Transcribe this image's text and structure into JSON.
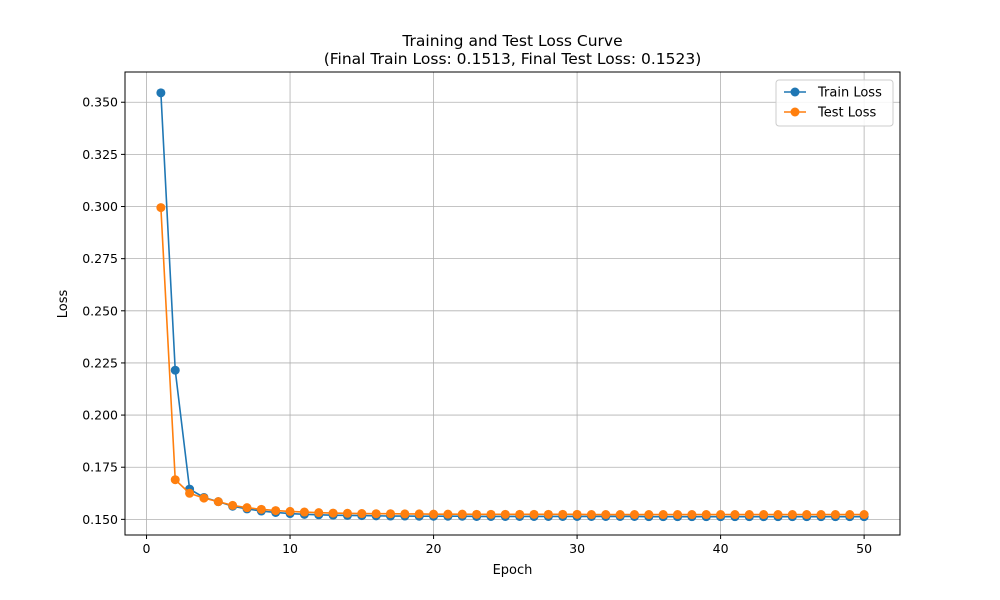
{
  "chart_data": {
    "type": "line",
    "title": "Training and Test Loss Curve",
    "subtitle": "(Final Train Loss: 0.1513, Final Test Loss: 0.1523)",
    "xlabel": "Epoch",
    "ylabel": "Loss",
    "xlim": [
      -1.5,
      52.5
    ],
    "ylim": [
      0.1425,
      0.3645
    ],
    "x_ticks": [
      0,
      10,
      20,
      30,
      40,
      50
    ],
    "y_ticks": [
      0.15,
      0.175,
      0.2,
      0.225,
      0.25,
      0.275,
      0.3,
      0.325,
      0.35
    ],
    "x_tick_labels": [
      "0",
      "10",
      "20",
      "30",
      "40",
      "50"
    ],
    "y_tick_labels": [
      "0.150",
      "0.175",
      "0.200",
      "0.225",
      "0.250",
      "0.275",
      "0.300",
      "0.325",
      "0.350"
    ],
    "grid": true,
    "legend_position": "top-right",
    "x": [
      1,
      2,
      3,
      4,
      5,
      6,
      7,
      8,
      9,
      10,
      11,
      12,
      13,
      14,
      15,
      16,
      17,
      18,
      19,
      20,
      21,
      22,
      23,
      24,
      25,
      26,
      27,
      28,
      29,
      30,
      31,
      32,
      33,
      34,
      35,
      36,
      37,
      38,
      39,
      40,
      41,
      42,
      43,
      44,
      45,
      46,
      47,
      48,
      49,
      50
    ],
    "series": [
      {
        "name": "Train Loss",
        "color": "#1f77b4",
        "values": [
          0.3545,
          0.2215,
          0.1645,
          0.1605,
          0.1585,
          0.1563,
          0.155,
          0.154,
          0.1533,
          0.1528,
          0.1524,
          0.1522,
          0.152,
          0.1519,
          0.1518,
          0.1517,
          0.1516,
          0.1516,
          0.1515,
          0.1515,
          0.1515,
          0.1515,
          0.1514,
          0.1514,
          0.1514,
          0.1514,
          0.1514,
          0.1514,
          0.1514,
          0.1514,
          0.1514,
          0.1514,
          0.1514,
          0.1514,
          0.1513,
          0.1513,
          0.1513,
          0.1513,
          0.1513,
          0.1513,
          0.1513,
          0.1513,
          0.1513,
          0.1513,
          0.1513,
          0.1513,
          0.1513,
          0.1513,
          0.1513,
          0.1513
        ]
      },
      {
        "name": "Test Loss",
        "color": "#ff7f0e",
        "values": [
          0.2995,
          0.169,
          0.1625,
          0.1602,
          0.1585,
          0.1567,
          0.1556,
          0.1548,
          0.1542,
          0.1538,
          0.1535,
          0.1532,
          0.153,
          0.1529,
          0.1528,
          0.1527,
          0.1527,
          0.1526,
          0.1526,
          0.1525,
          0.1525,
          0.1525,
          0.1524,
          0.1524,
          0.1524,
          0.1524,
          0.1524,
          0.1524,
          0.1524,
          0.1524,
          0.1523,
          0.1523,
          0.1523,
          0.1523,
          0.1523,
          0.1523,
          0.1523,
          0.1523,
          0.1523,
          0.1523,
          0.1523,
          0.1523,
          0.1523,
          0.1523,
          0.1523,
          0.1523,
          0.1523,
          0.1523,
          0.1523,
          0.1523
        ]
      }
    ]
  }
}
